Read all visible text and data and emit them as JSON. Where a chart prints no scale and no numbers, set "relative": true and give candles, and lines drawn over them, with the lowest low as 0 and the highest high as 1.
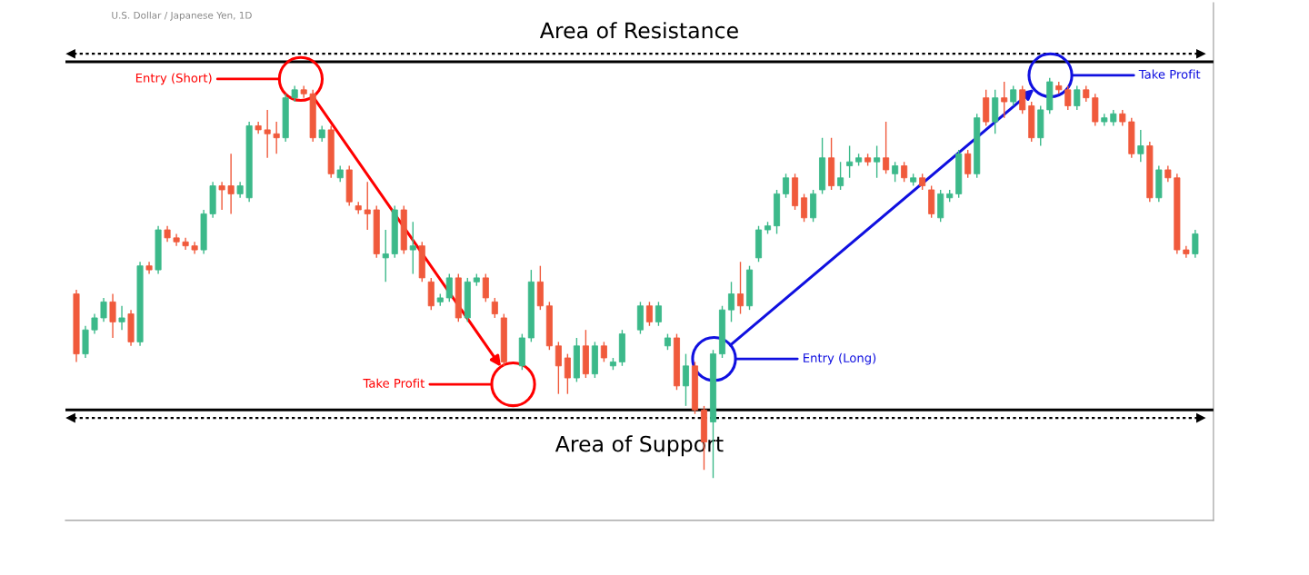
{
  "chart_data": {
    "type": "candlestick",
    "relative": true,
    "title": "U.S. Dollar / Japanese Yen, 1D",
    "categories": [
      null,
      null,
      null,
      null,
      null,
      null,
      null,
      null,
      null,
      null,
      null,
      null,
      null,
      null,
      null,
      null,
      null,
      null,
      null,
      null,
      null,
      null,
      null,
      null,
      null,
      null,
      null,
      null,
      null,
      null,
      null,
      null,
      null,
      null,
      null,
      null,
      null,
      null,
      null,
      null,
      null,
      null,
      null,
      null,
      null,
      null,
      null,
      null,
      null,
      null,
      null,
      null,
      null,
      null,
      null,
      null,
      null,
      null,
      null,
      null,
      null,
      null,
      null,
      null,
      null,
      null,
      null,
      null,
      null,
      null,
      null,
      null,
      null,
      null,
      null,
      null,
      null,
      null,
      null,
      null,
      null,
      null,
      null,
      null,
      null,
      null,
      null,
      null,
      null,
      null,
      null,
      null,
      null,
      null,
      null,
      null,
      null,
      null,
      null,
      null,
      null,
      null,
      null,
      null,
      null,
      null,
      null,
      null,
      null,
      null,
      null,
      null,
      null,
      null,
      null,
      null,
      null,
      null,
      null,
      null,
      null,
      null,
      null,
      null
    ],
    "ohlc": [
      [
        0.46,
        0.47,
        0.29,
        0.31
      ],
      [
        0.31,
        0.38,
        0.3,
        0.37
      ],
      [
        0.37,
        0.41,
        0.36,
        0.4
      ],
      [
        0.4,
        0.45,
        0.39,
        0.44
      ],
      [
        0.44,
        0.46,
        0.35,
        0.39
      ],
      [
        0.39,
        0.43,
        0.37,
        0.4
      ],
      [
        0.41,
        0.42,
        0.33,
        0.34
      ],
      [
        0.34,
        0.54,
        0.33,
        0.53
      ],
      [
        0.53,
        0.54,
        0.51,
        0.52
      ],
      [
        0.52,
        0.63,
        0.51,
        0.62
      ],
      [
        0.62,
        0.63,
        0.59,
        0.6
      ],
      [
        0.6,
        0.61,
        0.58,
        0.59
      ],
      [
        0.59,
        0.6,
        0.57,
        0.58
      ],
      [
        0.58,
        0.59,
        0.56,
        0.57
      ],
      [
        0.57,
        0.67,
        0.56,
        0.66
      ],
      [
        0.66,
        0.74,
        0.65,
        0.73
      ],
      [
        0.73,
        0.74,
        0.67,
        0.72
      ],
      [
        0.73,
        0.81,
        0.66,
        0.71
      ],
      [
        0.71,
        0.74,
        0.7,
        0.73
      ],
      [
        0.7,
        0.89,
        0.69,
        0.88
      ],
      [
        0.88,
        0.89,
        0.86,
        0.87
      ],
      [
        0.87,
        0.92,
        0.8,
        0.86
      ],
      [
        0.86,
        0.89,
        0.81,
        0.85
      ],
      [
        0.85,
        0.96,
        0.84,
        0.95
      ],
      [
        0.95,
        0.98,
        0.94,
        0.97
      ],
      [
        0.97,
        0.98,
        0.95,
        0.96
      ],
      [
        0.96,
        0.97,
        0.84,
        0.85
      ],
      [
        0.85,
        0.88,
        0.84,
        0.87
      ],
      [
        0.87,
        0.88,
        0.75,
        0.76
      ],
      [
        0.75,
        0.78,
        0.74,
        0.77
      ],
      [
        0.77,
        0.78,
        0.68,
        0.69
      ],
      [
        0.68,
        0.69,
        0.66,
        0.67
      ],
      [
        0.67,
        0.74,
        0.62,
        0.66
      ],
      [
        0.67,
        0.68,
        0.55,
        0.56
      ],
      [
        0.55,
        0.62,
        0.49,
        0.56
      ],
      [
        0.56,
        0.68,
        0.55,
        0.67
      ],
      [
        0.67,
        0.68,
        0.56,
        0.57
      ],
      [
        0.57,
        0.64,
        0.51,
        0.58
      ],
      [
        0.58,
        0.59,
        0.49,
        0.5
      ],
      [
        0.49,
        0.5,
        0.42,
        0.43
      ],
      [
        0.44,
        0.46,
        0.43,
        0.45
      ],
      [
        0.45,
        0.51,
        0.44,
        0.5
      ],
      [
        0.5,
        0.51,
        0.39,
        0.4
      ],
      [
        0.4,
        0.5,
        0.39,
        0.49
      ],
      [
        0.49,
        0.51,
        0.48,
        0.5
      ],
      [
        0.5,
        0.51,
        0.44,
        0.45
      ],
      [
        0.44,
        0.45,
        0.4,
        0.41
      ],
      [
        0.4,
        0.41,
        0.28,
        0.29
      ],
      null,
      [
        0.28,
        0.36,
        0.27,
        0.35
      ],
      [
        0.35,
        0.52,
        0.34,
        0.49
      ],
      [
        0.49,
        0.53,
        0.42,
        0.43
      ],
      [
        0.43,
        0.44,
        0.32,
        0.33
      ],
      [
        0.33,
        0.34,
        0.21,
        0.28
      ],
      [
        0.3,
        0.31,
        0.21,
        0.25
      ],
      [
        0.25,
        0.35,
        0.24,
        0.33
      ],
      [
        0.33,
        0.37,
        0.25,
        0.26
      ],
      [
        0.26,
        0.34,
        0.25,
        0.33
      ],
      [
        0.33,
        0.34,
        0.29,
        0.3
      ],
      [
        0.28,
        0.3,
        0.27,
        0.29
      ],
      [
        0.29,
        0.37,
        0.28,
        0.36
      ],
      null,
      [
        0.37,
        0.44,
        0.36,
        0.43
      ],
      [
        0.43,
        0.44,
        0.38,
        0.39
      ],
      [
        0.39,
        0.44,
        0.38,
        0.43
      ],
      [
        0.33,
        0.36,
        0.32,
        0.35
      ],
      [
        0.35,
        0.36,
        0.22,
        0.23
      ],
      [
        0.23,
        0.31,
        0.18,
        0.28
      ],
      [
        0.28,
        0.29,
        0.16,
        0.17
      ],
      [
        0.17,
        0.18,
        0.02,
        0.09
      ],
      [
        0.14,
        0.32,
        0.0,
        0.31
      ],
      [
        0.31,
        0.43,
        0.3,
        0.42
      ],
      [
        0.42,
        0.49,
        0.39,
        0.46
      ],
      [
        0.46,
        0.54,
        0.41,
        0.43
      ],
      [
        0.43,
        0.53,
        0.42,
        0.52
      ],
      [
        0.55,
        0.63,
        0.54,
        0.62
      ],
      [
        0.62,
        0.64,
        0.61,
        0.63
      ],
      [
        0.63,
        0.72,
        0.61,
        0.71
      ],
      [
        0.71,
        0.76,
        0.7,
        0.75
      ],
      [
        0.75,
        0.76,
        0.67,
        0.68
      ],
      [
        0.7,
        0.71,
        0.64,
        0.65
      ],
      [
        0.65,
        0.72,
        0.64,
        0.71
      ],
      [
        0.72,
        0.85,
        0.71,
        0.8
      ],
      [
        0.8,
        0.85,
        0.72,
        0.73
      ],
      [
        0.73,
        0.79,
        0.72,
        0.75
      ],
      [
        0.78,
        0.83,
        0.75,
        0.79
      ],
      [
        0.79,
        0.81,
        0.78,
        0.8
      ],
      [
        0.8,
        0.81,
        0.78,
        0.79
      ],
      [
        0.79,
        0.83,
        0.75,
        0.8
      ],
      [
        0.8,
        0.89,
        0.76,
        0.77
      ],
      [
        0.76,
        0.79,
        0.74,
        0.78
      ],
      [
        0.78,
        0.79,
        0.74,
        0.75
      ],
      [
        0.74,
        0.76,
        0.73,
        0.75
      ],
      [
        0.75,
        0.76,
        0.72,
        0.73
      ],
      [
        0.72,
        0.73,
        0.65,
        0.66
      ],
      [
        0.65,
        0.72,
        0.64,
        0.71
      ],
      [
        0.7,
        0.72,
        0.69,
        0.71
      ],
      [
        0.71,
        0.82,
        0.7,
        0.81
      ],
      [
        0.81,
        0.82,
        0.75,
        0.76
      ],
      [
        0.76,
        0.91,
        0.75,
        0.9
      ],
      [
        0.95,
        0.97,
        0.88,
        0.89
      ],
      [
        0.89,
        0.97,
        0.86,
        0.95
      ],
      [
        0.95,
        0.99,
        0.9,
        0.94
      ],
      [
        0.94,
        0.98,
        0.93,
        0.97
      ],
      [
        0.97,
        0.98,
        0.91,
        0.92
      ],
      [
        0.93,
        0.94,
        0.84,
        0.85
      ],
      [
        0.85,
        0.93,
        0.83,
        0.92
      ],
      [
        0.92,
        1.0,
        0.91,
        0.99
      ],
      [
        0.98,
        0.99,
        0.96,
        0.97
      ],
      [
        0.97,
        0.98,
        0.92,
        0.93
      ],
      [
        0.93,
        0.98,
        0.92,
        0.97
      ],
      [
        0.97,
        0.98,
        0.94,
        0.95
      ],
      [
        0.95,
        0.96,
        0.88,
        0.89
      ],
      [
        0.89,
        0.91,
        0.88,
        0.9
      ],
      [
        0.89,
        0.92,
        0.88,
        0.91
      ],
      [
        0.91,
        0.92,
        0.88,
        0.89
      ],
      [
        0.89,
        0.9,
        0.8,
        0.81
      ],
      [
        0.81,
        0.87,
        0.79,
        0.83
      ],
      [
        0.83,
        0.84,
        0.69,
        0.7
      ],
      [
        0.7,
        0.78,
        0.69,
        0.77
      ],
      [
        0.77,
        0.78,
        0.74,
        0.75
      ],
      [
        0.75,
        0.76,
        0.56,
        0.57
      ],
      [
        0.57,
        0.58,
        0.55,
        0.56
      ],
      [
        0.56,
        0.62,
        0.55,
        0.61
      ]
    ],
    "ref_lines": [
      {
        "axis": "y",
        "value": 1.04,
        "label": "Area of Resistance",
        "color": "#000000"
      },
      {
        "axis": "y",
        "value": 0.17,
        "label": "Area of Support",
        "color": "#000000"
      },
      {
        "axis": "y",
        "value": 1.06,
        "color": "#000000",
        "line_style": "dotted"
      },
      {
        "axis": "y",
        "value": 0.15,
        "color": "#000000",
        "line_style": "dotted"
      }
    ],
    "annotations": [
      "Entry (Short)",
      "Take Profit",
      "Entry (Long)",
      "Take Profit"
    ]
  }
}
